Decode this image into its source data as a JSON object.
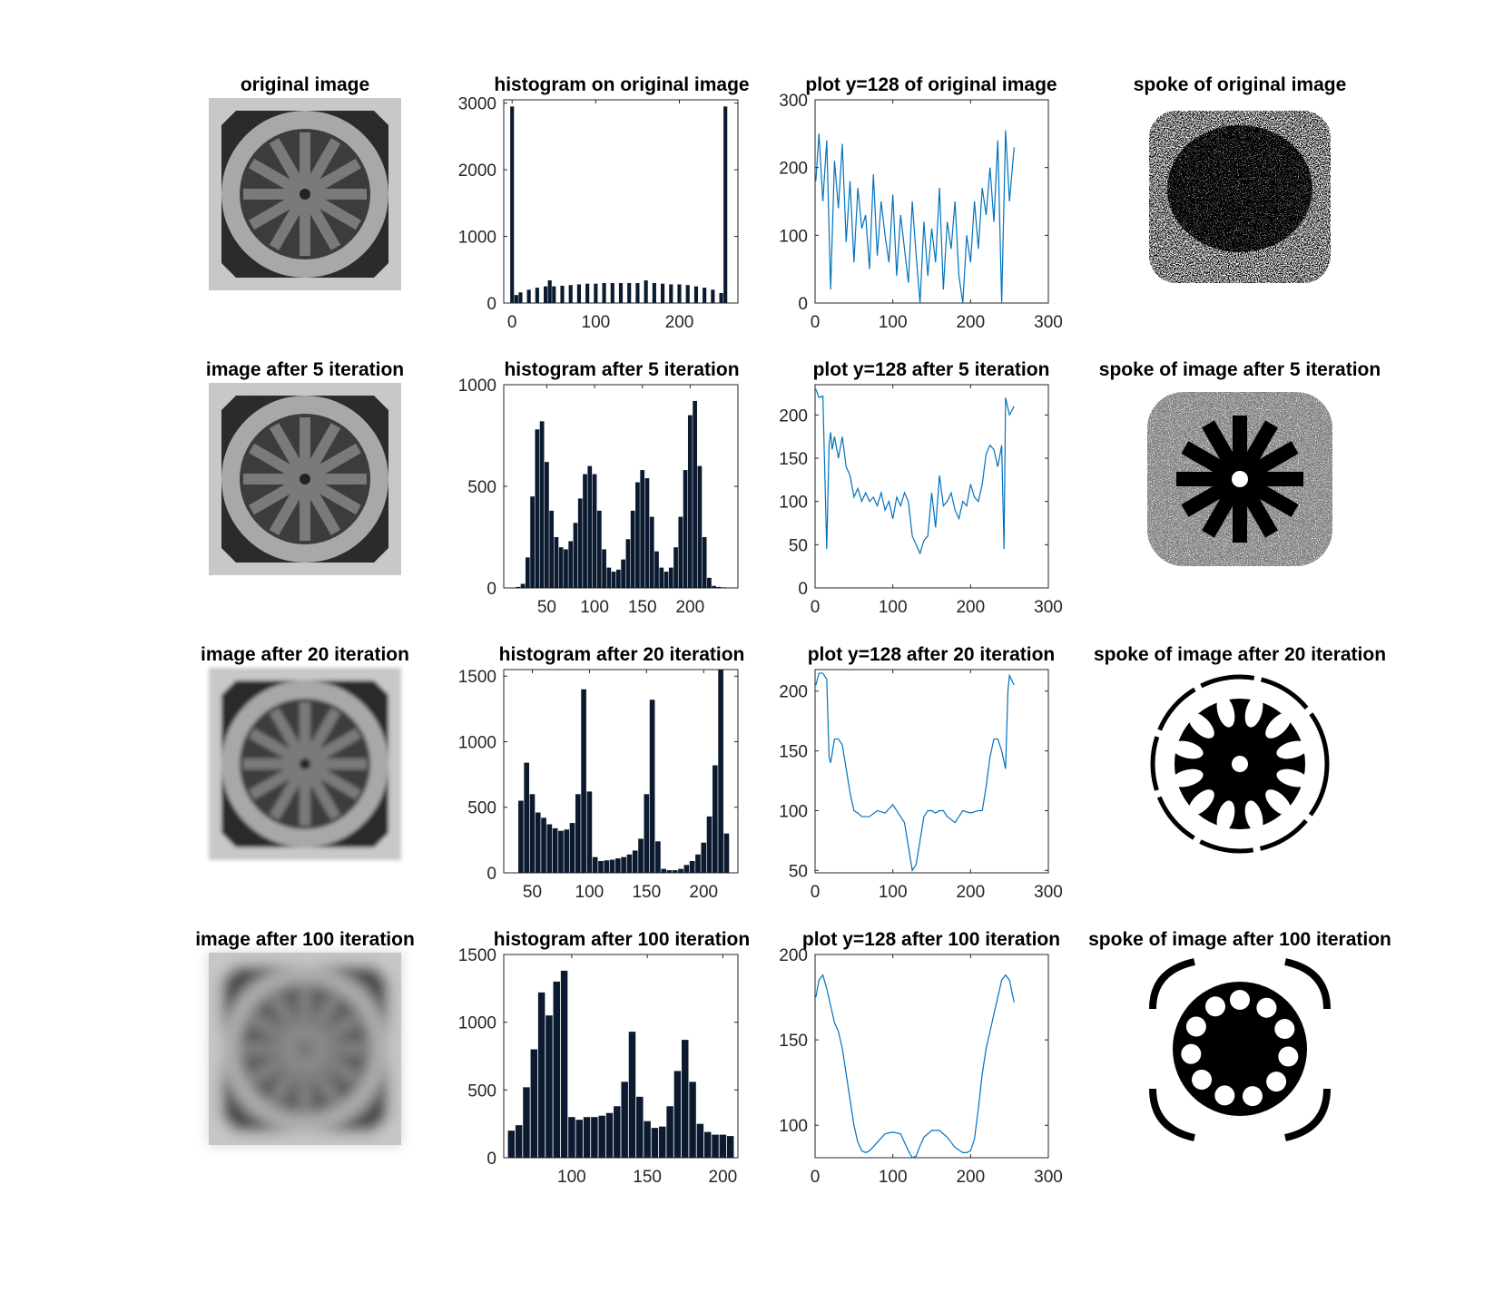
{
  "figure": {
    "rows": [
      {
        "image_title": "original image",
        "hist_title": "histogram on original image",
        "profile_title": "plot y=128 of original image",
        "spoke_title": "spoke of original image"
      },
      {
        "image_title": "image after 5 iteration",
        "hist_title": "histogram after 5 iteration",
        "profile_title": "plot y=128 after 5 iteration",
        "spoke_title": "spoke of image after 5 iteration"
      },
      {
        "image_title": "image after 20 iteration",
        "hist_title": "histogram after 20 iteration",
        "profile_title": "plot y=128 after 20 iteration",
        "spoke_title": "spoke of image after 20 iteration"
      },
      {
        "image_title": "image after 100 iteration",
        "hist_title": "histogram after 100 iteration",
        "profile_title": "plot y=128 after 100 iteration",
        "spoke_title": "spoke of image after 100 iteration"
      }
    ]
  },
  "colors": {
    "line": "#0072BD",
    "bar": "#0b1a2e",
    "axis": "#262626"
  },
  "chart_data": [
    {
      "type": "bar",
      "title": "histogram on original image",
      "row": 0,
      "xlim": [
        -10,
        270
      ],
      "ylim": [
        0,
        3050
      ],
      "xticks": [
        0,
        100,
        200
      ],
      "yticks": [
        0,
        1000,
        2000,
        3000
      ],
      "x": [
        0,
        5,
        10,
        20,
        30,
        40,
        45,
        50,
        60,
        70,
        80,
        90,
        100,
        110,
        120,
        130,
        140,
        150,
        160,
        170,
        180,
        190,
        200,
        210,
        220,
        230,
        240,
        250,
        255
      ],
      "values": [
        2950,
        120,
        160,
        200,
        230,
        250,
        340,
        250,
        260,
        270,
        280,
        290,
        290,
        300,
        300,
        300,
        300,
        300,
        340,
        300,
        290,
        280,
        280,
        270,
        250,
        230,
        200,
        150,
        2950
      ]
    },
    {
      "type": "bar",
      "title": "histogram after 5 iteration",
      "row": 1,
      "xlim": [
        5,
        250
      ],
      "ylim": [
        0,
        1000
      ],
      "xticks": [
        50,
        100,
        150,
        200
      ],
      "yticks": [
        0,
        500,
        1000
      ],
      "x": [
        20,
        25,
        30,
        35,
        40,
        45,
        50,
        55,
        60,
        65,
        70,
        75,
        80,
        85,
        90,
        95,
        100,
        105,
        110,
        115,
        120,
        125,
        130,
        135,
        140,
        145,
        150,
        155,
        160,
        165,
        170,
        175,
        180,
        185,
        190,
        195,
        200,
        205,
        210,
        215,
        220,
        225,
        230,
        235,
        240
      ],
      "values": [
        5,
        20,
        150,
        450,
        780,
        820,
        620,
        380,
        250,
        200,
        190,
        230,
        320,
        440,
        560,
        600,
        560,
        380,
        190,
        100,
        80,
        90,
        140,
        240,
        380,
        520,
        580,
        540,
        350,
        180,
        100,
        80,
        100,
        200,
        350,
        580,
        850,
        920,
        600,
        250,
        50,
        10,
        5,
        3,
        2
      ]
    },
    {
      "type": "bar",
      "title": "histogram after 20 iteration",
      "row": 2,
      "xlim": [
        25,
        230
      ],
      "ylim": [
        0,
        1550
      ],
      "xticks": [
        50,
        100,
        150,
        200
      ],
      "yticks": [
        0,
        500,
        1000,
        1500
      ],
      "x": [
        40,
        45,
        50,
        55,
        60,
        65,
        70,
        75,
        80,
        85,
        90,
        95,
        100,
        105,
        110,
        115,
        120,
        125,
        130,
        135,
        140,
        145,
        150,
        155,
        160,
        165,
        170,
        175,
        180,
        185,
        190,
        195,
        200,
        205,
        210,
        215,
        220
      ],
      "values": [
        550,
        840,
        600,
        460,
        420,
        370,
        340,
        320,
        330,
        380,
        600,
        1400,
        620,
        120,
        90,
        95,
        100,
        110,
        120,
        140,
        170,
        260,
        600,
        1320,
        240,
        30,
        20,
        20,
        30,
        60,
        90,
        140,
        230,
        430,
        820,
        1550,
        300
      ]
    },
    {
      "type": "bar",
      "title": "histogram after 100 iteration",
      "row": 3,
      "xlim": [
        55,
        210
      ],
      "ylim": [
        0,
        1500
      ],
      "xticks": [
        100,
        150,
        200
      ],
      "yticks": [
        0,
        500,
        1000,
        1500
      ],
      "x": [
        60,
        65,
        70,
        75,
        80,
        85,
        90,
        95,
        100,
        105,
        110,
        115,
        120,
        125,
        130,
        135,
        140,
        145,
        150,
        155,
        160,
        165,
        170,
        175,
        180,
        185,
        190,
        195,
        200,
        205
      ],
      "values": [
        200,
        240,
        520,
        800,
        1220,
        1050,
        1300,
        1380,
        300,
        280,
        300,
        300,
        310,
        330,
        380,
        560,
        930,
        450,
        270,
        220,
        230,
        380,
        640,
        870,
        560,
        250,
        190,
        170,
        170,
        160
      ]
    },
    {
      "type": "line",
      "title": "plot y=128 of original image",
      "row": 0,
      "xlim": [
        0,
        300
      ],
      "ylim": [
        0,
        300
      ],
      "xticks": [
        0,
        100,
        200,
        300
      ],
      "yticks": [
        0,
        100,
        200,
        300
      ],
      "x": [
        1,
        5,
        10,
        15,
        20,
        25,
        30,
        35,
        40,
        45,
        50,
        55,
        60,
        65,
        70,
        75,
        80,
        85,
        90,
        95,
        100,
        105,
        110,
        115,
        120,
        125,
        130,
        135,
        140,
        145,
        150,
        155,
        160,
        165,
        170,
        175,
        180,
        185,
        190,
        195,
        200,
        205,
        210,
        215,
        220,
        225,
        230,
        235,
        240,
        245,
        250,
        256
      ],
      "y": [
        180,
        250,
        150,
        240,
        20,
        210,
        140,
        235,
        90,
        180,
        60,
        170,
        110,
        130,
        50,
        190,
        70,
        150,
        100,
        60,
        160,
        40,
        130,
        80,
        30,
        150,
        70,
        0,
        120,
        40,
        110,
        60,
        170,
        20,
        120,
        80,
        150,
        40,
        0,
        100,
        60,
        150,
        80,
        170,
        130,
        200,
        120,
        240,
        0,
        255,
        150,
        230
      ]
    },
    {
      "type": "line",
      "title": "plot y=128 after 5 iteration",
      "row": 1,
      "xlim": [
        0,
        300
      ],
      "ylim": [
        0,
        235
      ],
      "xticks": [
        0,
        100,
        200,
        300
      ],
      "yticks": [
        0,
        50,
        100,
        150,
        200
      ],
      "x": [
        1,
        5,
        10,
        15,
        18,
        20,
        22,
        25,
        30,
        35,
        40,
        45,
        50,
        55,
        60,
        65,
        70,
        75,
        80,
        85,
        90,
        95,
        100,
        105,
        110,
        115,
        120,
        125,
        130,
        135,
        140,
        145,
        150,
        155,
        160,
        165,
        170,
        175,
        180,
        185,
        190,
        195,
        200,
        205,
        210,
        215,
        220,
        225,
        230,
        235,
        240,
        243,
        245,
        250,
        256
      ],
      "y": [
        230,
        220,
        222,
        45,
        165,
        180,
        160,
        175,
        150,
        175,
        140,
        130,
        105,
        115,
        100,
        110,
        100,
        105,
        95,
        110,
        90,
        100,
        80,
        105,
        95,
        110,
        100,
        60,
        50,
        40,
        55,
        60,
        110,
        70,
        130,
        95,
        100,
        110,
        90,
        80,
        100,
        95,
        120,
        105,
        100,
        120,
        155,
        165,
        160,
        140,
        165,
        45,
        220,
        200,
        210
      ]
    },
    {
      "type": "line",
      "title": "plot y=128 after 20 iteration",
      "row": 2,
      "xlim": [
        0,
        300
      ],
      "ylim": [
        48,
        218
      ],
      "xticks": [
        0,
        100,
        200,
        300
      ],
      "yticks": [
        50,
        100,
        150,
        200
      ],
      "x": [
        1,
        5,
        10,
        15,
        18,
        20,
        25,
        30,
        35,
        40,
        45,
        50,
        55,
        60,
        70,
        80,
        90,
        100,
        105,
        110,
        115,
        120,
        125,
        130,
        135,
        140,
        145,
        150,
        155,
        160,
        165,
        170,
        180,
        190,
        200,
        210,
        215,
        220,
        225,
        230,
        235,
        240,
        245,
        248,
        250,
        256
      ],
      "y": [
        205,
        215,
        215,
        210,
        145,
        140,
        160,
        160,
        155,
        135,
        115,
        100,
        98,
        95,
        95,
        100,
        98,
        105,
        100,
        95,
        90,
        70,
        50,
        55,
        75,
        95,
        100,
        100,
        98,
        100,
        100,
        95,
        90,
        100,
        98,
        100,
        100,
        120,
        145,
        160,
        160,
        150,
        135,
        200,
        213,
        205
      ]
    },
    {
      "type": "line",
      "title": "plot y=128 after 100 iteration",
      "row": 3,
      "xlim": [
        0,
        300
      ],
      "ylim": [
        81,
        200
      ],
      "xticks": [
        0,
        100,
        200,
        300
      ],
      "yticks": [
        100,
        150,
        200
      ],
      "x": [
        1,
        5,
        10,
        15,
        20,
        25,
        30,
        35,
        40,
        45,
        50,
        55,
        60,
        65,
        70,
        80,
        90,
        100,
        110,
        120,
        125,
        130,
        135,
        140,
        150,
        160,
        170,
        180,
        190,
        195,
        200,
        205,
        210,
        215,
        220,
        225,
        230,
        235,
        240,
        245,
        250,
        256
      ],
      "y": [
        175,
        185,
        188,
        180,
        170,
        160,
        155,
        145,
        130,
        115,
        100,
        90,
        85,
        84,
        85,
        90,
        95,
        96,
        95,
        85,
        81,
        82,
        88,
        93,
        97,
        97,
        93,
        87,
        84,
        84,
        85,
        92,
        110,
        130,
        145,
        155,
        165,
        175,
        185,
        188,
        185,
        172
      ]
    }
  ]
}
